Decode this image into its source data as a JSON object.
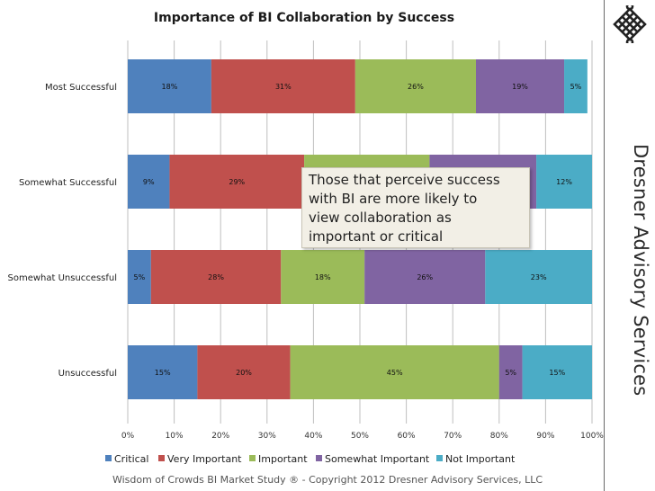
{
  "chart_data": {
    "type": "bar",
    "orientation": "horizontal",
    "stacked": true,
    "title": "Importance of BI Collaboration by Success",
    "categories": [
      "Most Successful",
      "Somewhat Successful",
      "Somewhat Unsuccessful",
      "Unsuccessful"
    ],
    "series": [
      {
        "name": "Critical",
        "color": "#4f81bd",
        "values": [
          18,
          9,
          5,
          15
        ],
        "labels": [
          "18%",
          "9%",
          "5%",
          "15%"
        ]
      },
      {
        "name": "Very Important",
        "color": "#c0504d",
        "values": [
          31,
          29,
          28,
          20
        ],
        "labels": [
          "31%",
          "29%",
          "28%",
          "20%"
        ]
      },
      {
        "name": "Important",
        "color": "#9bbb59",
        "values": [
          26,
          27,
          18,
          45
        ],
        "labels": [
          "26%",
          "",
          "18%",
          "45%"
        ]
      },
      {
        "name": "Somewhat Important",
        "color": "#8064a2",
        "values": [
          19,
          23,
          26,
          5
        ],
        "labels": [
          "19%",
          "",
          "26%",
          "5%"
        ]
      },
      {
        "name": "Not Important",
        "color": "#4bacc6",
        "values": [
          5,
          12,
          23,
          15
        ],
        "labels": [
          "5%",
          "12%",
          "23%",
          "15%"
        ]
      }
    ],
    "xlim": [
      0,
      100
    ],
    "x_ticks": [
      "0%",
      "10%",
      "20%",
      "30%",
      "40%",
      "50%",
      "60%",
      "70%",
      "80%",
      "90%",
      "100%"
    ],
    "grid": true,
    "legend_position": "bottom"
  },
  "callout": {
    "line1": "Those that perceive success",
    "line2": "with BI are more likely to",
    "line3": "view collaboration as",
    "line4": "important or critical"
  },
  "footer": "Wisdom of Crowds BI Market Study ® - Copyright 2012 Dresner Advisory Services, LLC",
  "brand": {
    "name": "Dresner Advisory Services",
    "logo_icon": "endless-knot-icon"
  }
}
